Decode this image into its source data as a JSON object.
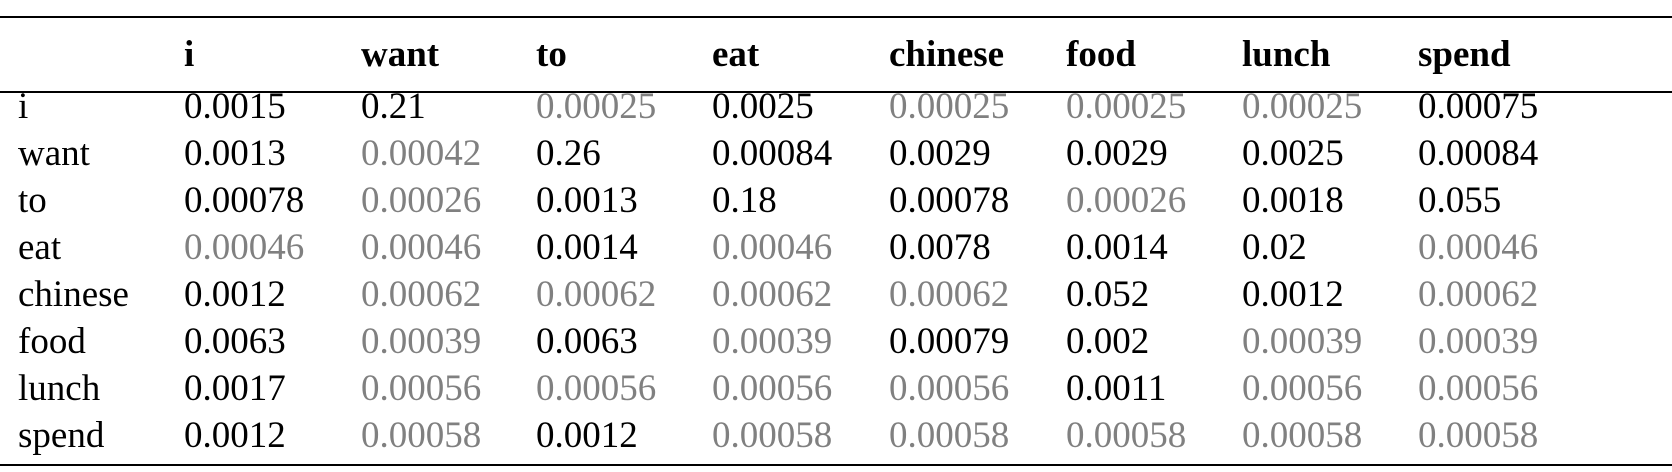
{
  "table": {
    "columns": [
      "",
      "i",
      "want",
      "to",
      "eat",
      "chinese",
      "food",
      "lunch",
      "spend"
    ],
    "rows": [
      {
        "label": "i",
        "values": [
          "0.0015",
          "0.21",
          "0.00025",
          "0.0025",
          "0.00025",
          "0.00025",
          "0.00025",
          "0.00075"
        ]
      },
      {
        "label": "want",
        "values": [
          "0.0013",
          "0.00042",
          "0.26",
          "0.00084",
          "0.0029",
          "0.0029",
          "0.0025",
          "0.00084"
        ]
      },
      {
        "label": "to",
        "values": [
          "0.00078",
          "0.00026",
          "0.0013",
          "0.18",
          "0.00078",
          "0.00026",
          "0.0018",
          "0.055"
        ]
      },
      {
        "label": "eat",
        "values": [
          "0.00046",
          "0.00046",
          "0.0014",
          "0.00046",
          "0.0078",
          "0.0014",
          "0.02",
          "0.00046"
        ]
      },
      {
        "label": "chinese",
        "values": [
          "0.0012",
          "0.00062",
          "0.00062",
          "0.00062",
          "0.00062",
          "0.052",
          "0.0012",
          "0.00062"
        ]
      },
      {
        "label": "food",
        "values": [
          "0.0063",
          "0.00039",
          "0.0063",
          "0.00039",
          "0.00079",
          "0.002",
          "0.00039",
          "0.00039"
        ]
      },
      {
        "label": "lunch",
        "values": [
          "0.0017",
          "0.00056",
          "0.00056",
          "0.00056",
          "0.00056",
          "0.0011",
          "0.00056",
          "0.00056"
        ]
      },
      {
        "label": "spend",
        "values": [
          "0.0012",
          "0.00058",
          "0.0012",
          "0.00058",
          "0.00058",
          "0.00058",
          "0.00058",
          "0.00058"
        ]
      }
    ],
    "gray_values": [
      "0.00025",
      "0.00042",
      "0.00026",
      "0.00046",
      "0.00062",
      "0.00039",
      "0.00056",
      "0.00058"
    ],
    "colors": {
      "text": "#000000",
      "muted": "#808080"
    }
  }
}
